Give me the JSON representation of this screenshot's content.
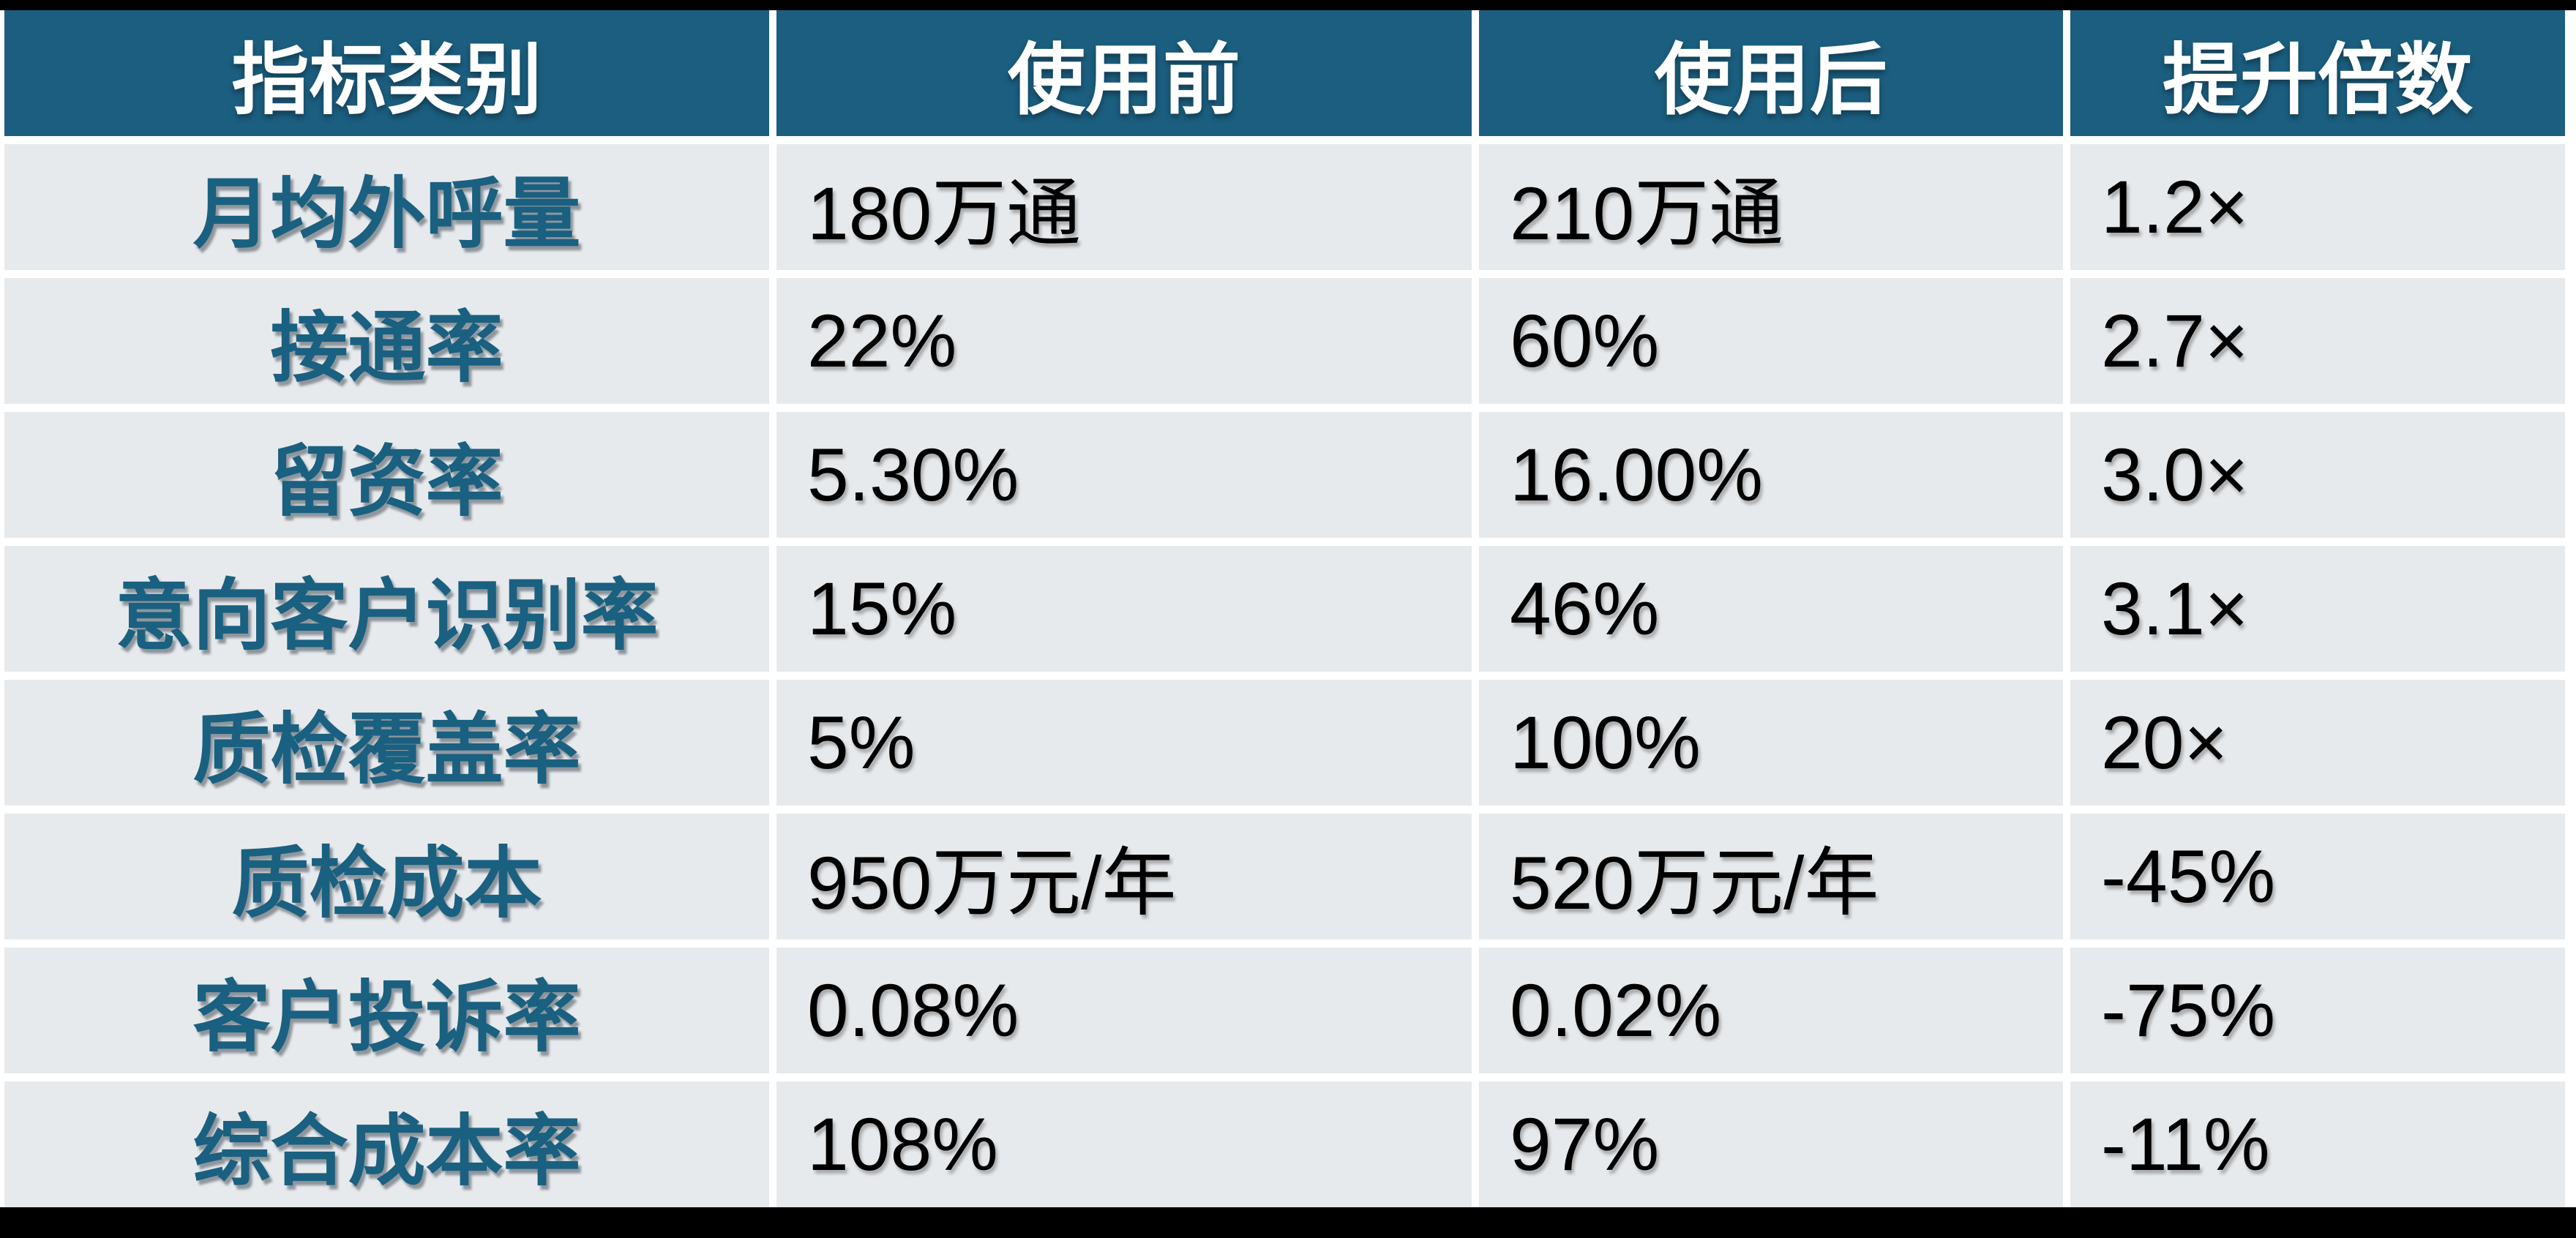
{
  "chart_data": {
    "type": "table",
    "columns": [
      "指标类别",
      "使用前",
      "使用后",
      "提升倍数"
    ],
    "rows": [
      [
        "月均外呼量",
        "180万通",
        "210万通",
        "1.2×"
      ],
      [
        "接通率",
        "22%",
        "60%",
        "2.7×"
      ],
      [
        "留资率",
        "5.30%",
        "16.00%",
        "3.0×"
      ],
      [
        "意向客户识别率",
        "15%",
        "46%",
        "3.1×"
      ],
      [
        "质检覆盖率",
        "5%",
        "100%",
        "20×"
      ],
      [
        "质检成本",
        "950万元/年",
        "520万元/年",
        "-45%"
      ],
      [
        "客户投诉率",
        "0.08%",
        "0.02%",
        "-75%"
      ],
      [
        "综合成本率",
        "108%",
        "97%",
        "-11%"
      ]
    ]
  },
  "table": {
    "headers": {
      "category": "指标类别",
      "before": "使用前",
      "after": "使用后",
      "multiplier": "提升倍数"
    },
    "rows": [
      {
        "category": "月均外呼量",
        "before": "180万通",
        "after": "210万通",
        "multiplier": "1.2×"
      },
      {
        "category": "接通率",
        "before": "22%",
        "after": "60%",
        "multiplier": "2.7×"
      },
      {
        "category": "留资率",
        "before": "5.30%",
        "after": "16.00%",
        "multiplier": "3.0×"
      },
      {
        "category": "意向客户识别率",
        "before": "15%",
        "after": "46%",
        "multiplier": "3.1×"
      },
      {
        "category": "质检覆盖率",
        "before": "5%",
        "after": "100%",
        "multiplier": "20×"
      },
      {
        "category": "质检成本",
        "before": "950万元/年",
        "after": "520万元/年",
        "multiplier": "-45%"
      },
      {
        "category": "客户投诉率",
        "before": "0.08%",
        "after": "0.02%",
        "multiplier": "-75%"
      },
      {
        "category": "综合成本率",
        "before": "108%",
        "after": "97%",
        "multiplier": "-11%"
      }
    ],
    "colors": {
      "header_bg": "#1B5E7F",
      "header_text": "#FFFFFF",
      "row_bg": "#E7EAED",
      "category_text": "#1A6080",
      "value_text": "#000000",
      "gridline": "#FFFFFF",
      "frame": "#000000"
    }
  }
}
